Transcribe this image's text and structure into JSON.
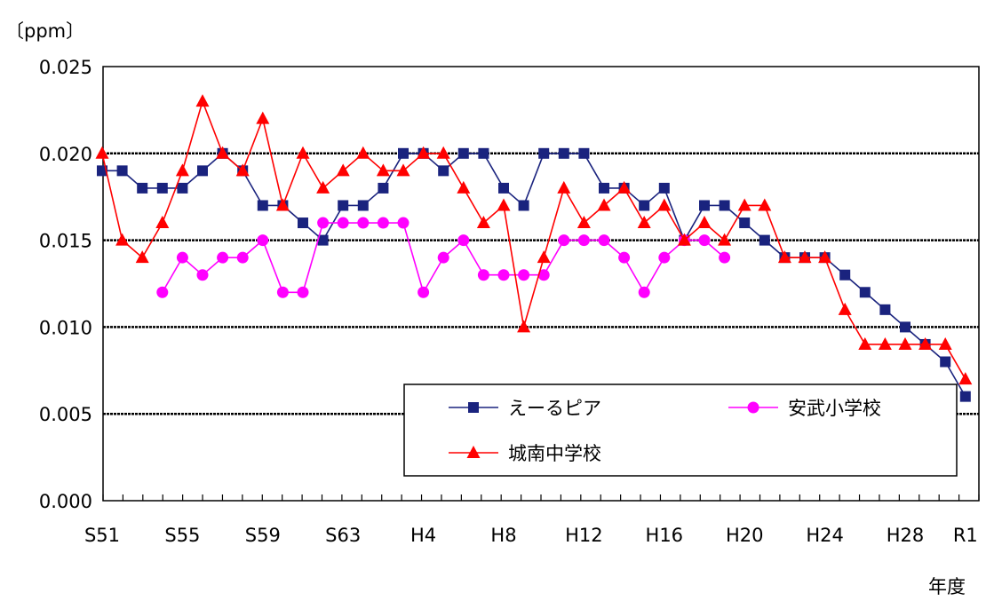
{
  "chart_data": {
    "type": "line",
    "unit_label": "〔ppm〕",
    "xlabel": "年度",
    "ylim": [
      0,
      0.025
    ],
    "y_ticks": [
      "0.000",
      "0.005",
      "0.010",
      "0.015",
      "0.020",
      "0.025"
    ],
    "y_tick_values": [
      0,
      0.005,
      0.01,
      0.015,
      0.02,
      0.025
    ],
    "grid": "horizontal-dashed",
    "categories": [
      "S51",
      "S52",
      "S53",
      "S54",
      "S55",
      "S56",
      "S57",
      "S58",
      "S59",
      "S60",
      "S61",
      "S62",
      "S63",
      "H1",
      "H2",
      "H3",
      "H4",
      "H5",
      "H6",
      "H7",
      "H8",
      "H9",
      "H10",
      "H11",
      "H12",
      "H13",
      "H14",
      "H15",
      "H16",
      "H17",
      "H18",
      "H19",
      "H20",
      "H21",
      "H22",
      "H23",
      "H24",
      "H25",
      "H26",
      "H27",
      "H28",
      "H29",
      "H30",
      "R1"
    ],
    "x_tick_labels": [
      {
        "label": "S51",
        "index": 0,
        "color": "#000000"
      },
      {
        "label": "S55",
        "index": 4,
        "color": "#000000"
      },
      {
        "label": "S59",
        "index": 8,
        "color": "#000000"
      },
      {
        "label": "S63",
        "index": 12,
        "color": "#000000"
      },
      {
        "label": "H4",
        "index": 16,
        "color": "#000000"
      },
      {
        "label": "H8",
        "index": 20,
        "color": "#000000"
      },
      {
        "label": "H12",
        "index": 24,
        "color": "#000000"
      },
      {
        "label": "H16",
        "index": 28,
        "color": "#000000"
      },
      {
        "label": "H20",
        "index": 32,
        "color": "#000000"
      },
      {
        "label": "H24",
        "index": 36,
        "color": "#000000"
      },
      {
        "label": "H28",
        "index": 40,
        "color": "#000000"
      },
      {
        "label": "R1",
        "index": 43,
        "color": "#ff0000"
      }
    ],
    "legend_position": "bottom-right",
    "series": [
      {
        "name": "えーるピア",
        "color": "#1a237e",
        "marker": "square",
        "values": [
          0.019,
          0.019,
          0.018,
          0.018,
          0.018,
          0.019,
          0.02,
          0.019,
          0.017,
          0.017,
          0.016,
          0.015,
          0.017,
          0.017,
          0.018,
          0.02,
          0.02,
          0.019,
          0.02,
          0.02,
          0.018,
          0.017,
          0.02,
          0.02,
          0.02,
          0.018,
          0.018,
          0.017,
          0.018,
          0.015,
          0.017,
          0.017,
          0.016,
          0.015,
          0.014,
          0.014,
          0.014,
          0.013,
          0.012,
          0.011,
          0.01,
          0.009,
          0.008,
          0.006
        ]
      },
      {
        "name": "安武小学校",
        "color": "#ff00ff",
        "marker": "circle",
        "values": [
          null,
          null,
          null,
          0.012,
          0.014,
          0.013,
          0.014,
          0.014,
          0.015,
          0.012,
          0.012,
          0.016,
          0.016,
          0.016,
          0.016,
          0.016,
          0.012,
          0.014,
          0.015,
          0.013,
          0.013,
          0.013,
          0.013,
          0.015,
          0.015,
          0.015,
          0.014,
          0.012,
          0.014,
          0.015,
          0.015,
          0.014,
          null,
          null,
          null,
          null,
          null,
          null,
          null,
          null,
          null,
          null,
          null,
          null
        ]
      },
      {
        "name": "城南中学校",
        "color": "#ff0000",
        "marker": "triangle",
        "values": [
          0.02,
          0.015,
          0.014,
          0.016,
          0.019,
          0.023,
          0.02,
          0.019,
          0.022,
          0.017,
          0.02,
          0.018,
          0.019,
          0.02,
          0.019,
          0.019,
          0.02,
          0.02,
          0.018,
          0.016,
          0.017,
          0.01,
          0.014,
          0.018,
          0.016,
          0.017,
          0.018,
          0.016,
          0.017,
          0.015,
          0.016,
          0.015,
          0.017,
          0.017,
          0.014,
          0.014,
          0.014,
          0.011,
          0.009,
          0.009,
          0.009,
          0.009,
          0.009,
          0.007
        ]
      }
    ]
  }
}
